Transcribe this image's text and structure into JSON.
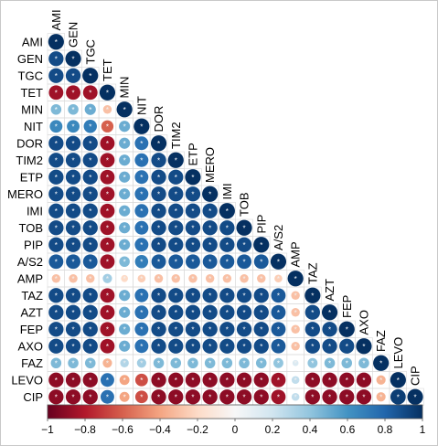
{
  "chart_data": {
    "type": "heatmap",
    "variables": [
      "AMI",
      "GEN",
      "TGC",
      "TET",
      "MIN",
      "NIT",
      "DOR",
      "TIM2",
      "ETP",
      "MERO",
      "IMI",
      "TOB",
      "PIP",
      "A/S2",
      "AMP",
      "TAZ",
      "AZT",
      "FEP",
      "AXO",
      "FAZ",
      "LEVO",
      "CIP"
    ],
    "correlations": [
      [
        1.0
      ],
      [
        0.9,
        1.0
      ],
      [
        0.9,
        0.9,
        1.0
      ],
      [
        -0.85,
        -0.85,
        -0.85,
        1.0
      ],
      [
        0.45,
        0.45,
        0.5,
        -0.3,
        1.0
      ],
      [
        0.65,
        0.65,
        0.7,
        -0.6,
        0.5,
        1.0
      ],
      [
        0.9,
        0.9,
        0.9,
        -0.85,
        0.5,
        0.75,
        1.0
      ],
      [
        0.9,
        0.9,
        0.9,
        -0.85,
        0.5,
        0.75,
        0.9,
        1.0
      ],
      [
        0.9,
        0.9,
        0.9,
        -0.85,
        0.5,
        0.75,
        0.9,
        0.9,
        1.0
      ],
      [
        0.9,
        0.9,
        0.9,
        -0.85,
        0.5,
        0.75,
        0.9,
        0.9,
        0.9,
        1.0
      ],
      [
        0.9,
        0.9,
        0.9,
        -0.85,
        0.5,
        0.75,
        0.9,
        0.9,
        0.9,
        0.9,
        1.0
      ],
      [
        0.9,
        0.9,
        0.9,
        -0.85,
        0.5,
        0.75,
        0.9,
        0.9,
        0.9,
        0.9,
        0.9,
        1.0
      ],
      [
        0.9,
        0.9,
        0.9,
        -0.85,
        0.5,
        0.75,
        0.9,
        0.9,
        0.9,
        0.9,
        0.9,
        0.9,
        1.0
      ],
      [
        0.85,
        0.85,
        0.85,
        -0.85,
        0.45,
        0.7,
        0.85,
        0.85,
        0.85,
        0.85,
        0.85,
        0.85,
        0.85,
        1.0
      ],
      [
        -0.3,
        -0.3,
        -0.3,
        0.35,
        -0.2,
        -0.25,
        -0.3,
        -0.3,
        -0.3,
        -0.3,
        -0.3,
        -0.3,
        -0.3,
        -0.25,
        1.0
      ],
      [
        0.9,
        0.9,
        0.9,
        -0.85,
        0.5,
        0.75,
        0.9,
        0.9,
        0.9,
        0.9,
        0.9,
        0.9,
        0.9,
        0.85,
        -0.3,
        1.0
      ],
      [
        0.9,
        0.9,
        0.9,
        -0.85,
        0.5,
        0.75,
        0.9,
        0.9,
        0.9,
        0.9,
        0.9,
        0.9,
        0.9,
        0.85,
        -0.3,
        0.9,
        1.0
      ],
      [
        0.9,
        0.9,
        0.9,
        -0.85,
        0.5,
        0.75,
        0.9,
        0.9,
        0.9,
        0.9,
        0.9,
        0.9,
        0.9,
        0.85,
        -0.3,
        0.9,
        0.9,
        1.0
      ],
      [
        0.9,
        0.9,
        0.9,
        -0.85,
        0.5,
        0.75,
        0.9,
        0.9,
        0.9,
        0.9,
        0.9,
        0.9,
        0.9,
        0.85,
        -0.3,
        0.9,
        0.9,
        0.9,
        1.0
      ],
      [
        0.45,
        0.45,
        0.45,
        -0.35,
        0.3,
        0.35,
        0.45,
        0.45,
        0.45,
        0.45,
        0.45,
        0.45,
        0.45,
        0.4,
        0.15,
        0.4,
        0.45,
        0.45,
        0.45,
        1.0
      ],
      [
        -0.9,
        -0.9,
        -0.9,
        0.75,
        -0.4,
        -0.65,
        -0.9,
        -0.9,
        -0.9,
        -0.9,
        -0.9,
        -0.9,
        -0.9,
        -0.85,
        0.25,
        -0.9,
        -0.9,
        -0.9,
        -0.9,
        -0.35,
        1.0
      ],
      [
        -0.9,
        -0.9,
        -0.9,
        0.75,
        -0.4,
        -0.65,
        -0.9,
        -0.9,
        -0.9,
        -0.9,
        -0.9,
        -0.9,
        -0.9,
        -0.85,
        0.25,
        -0.9,
        -0.9,
        -0.9,
        -0.9,
        -0.35,
        0.95,
        1.0
      ]
    ],
    "significance_marker": "*",
    "colorbar": {
      "ticks": [
        -1,
        -0.8,
        -0.6,
        -0.4,
        -0.2,
        0,
        0.2,
        0.4,
        0.6,
        0.8,
        1
      ],
      "tick_labels": [
        "−1",
        "−0.8",
        "−0.6",
        "−0.4",
        "−0.2",
        "0",
        "0.2",
        "0.4",
        "0.6",
        "0.8",
        "1"
      ]
    },
    "colors": {
      "negative": "#67001f",
      "neutral": "#f7f7f7",
      "positive": "#053061"
    },
    "title": "",
    "xlabel": "",
    "ylabel": "",
    "legend_position": "bottom",
    "grid": true
  }
}
